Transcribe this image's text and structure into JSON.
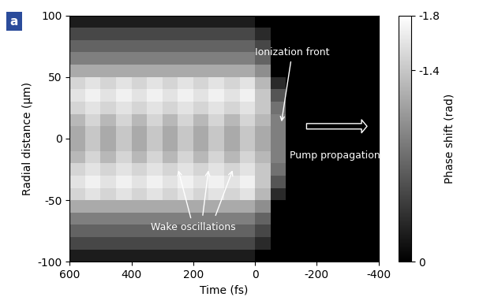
{
  "chart_data": {
    "type": "heatmap",
    "panel_label": "a",
    "x_label": "Time (fs)",
    "y_label": "Radial distance (µm)",
    "xlim": [
      600,
      -400
    ],
    "xticks": [
      600,
      400,
      200,
      0,
      -200,
      -400
    ],
    "ylim": [
      -100,
      100
    ],
    "yticks": [
      -100,
      -50,
      0,
      50,
      100
    ],
    "colorbar_label": "Phase shift (rad)",
    "colorbar_range": [
      -1.8,
      0
    ],
    "colorbar_ticks": [
      -1.8,
      -1.4,
      0
    ],
    "annotations": [
      "Ionization front",
      "Pump propagation",
      "Wake oscillations"
    ],
    "x": [
      575,
      525,
      475,
      425,
      375,
      325,
      275,
      225,
      175,
      125,
      75,
      25,
      -25,
      -75,
      -125,
      -175,
      -225,
      -275,
      -325,
      -375
    ],
    "y": [
      -95,
      -85,
      -75,
      -65,
      -55,
      -45,
      -35,
      -25,
      -15,
      -5,
      5,
      15,
      25,
      35,
      45,
      55,
      65,
      75,
      85,
      95
    ],
    "cells": [
      [
        -0.2,
        -0.2,
        -0.2,
        -0.2,
        -0.2,
        -0.2,
        -0.2,
        -0.2,
        -0.2,
        -0.2,
        -0.2,
        -0.2,
        0,
        0,
        0,
        0,
        0,
        0,
        0,
        0
      ],
      [
        -0.5,
        -0.5,
        -0.5,
        -0.5,
        -0.5,
        -0.5,
        -0.5,
        -0.5,
        -0.5,
        -0.5,
        -0.5,
        -0.5,
        -0.3,
        0,
        0,
        0,
        0,
        0,
        0,
        0
      ],
      [
        -0.7,
        -0.7,
        -0.7,
        -0.7,
        -0.7,
        -0.7,
        -0.7,
        -0.7,
        -0.7,
        -0.7,
        -0.7,
        -0.7,
        -0.5,
        0,
        0,
        0,
        0,
        0,
        0,
        0
      ],
      [
        -0.9,
        -0.9,
        -0.9,
        -0.9,
        -0.9,
        -0.9,
        -0.9,
        -0.9,
        -0.9,
        -0.9,
        -0.9,
        -0.9,
        -0.7,
        0,
        0,
        0,
        0,
        0,
        0,
        0
      ],
      [
        -1.2,
        -1.2,
        -1.2,
        -1.2,
        -1.2,
        -1.2,
        -1.2,
        -1.2,
        -1.2,
        -1.2,
        -1.2,
        -1.2,
        -1.0,
        0,
        0,
        0,
        0,
        0,
        0,
        0
      ],
      [
        -1.5,
        -1.6,
        -1.5,
        -1.6,
        -1.5,
        -1.6,
        -1.5,
        -1.6,
        -1.5,
        -1.6,
        -1.5,
        -1.6,
        -1.3,
        -0.3,
        0,
        0,
        0,
        0,
        0,
        0
      ],
      [
        -1.6,
        -1.7,
        -1.6,
        -1.7,
        -1.6,
        -1.7,
        -1.6,
        -1.7,
        -1.6,
        -1.7,
        -1.6,
        -1.7,
        -1.4,
        -0.6,
        0,
        0,
        0,
        0,
        0,
        0
      ],
      [
        -1.5,
        -1.6,
        -1.5,
        -1.6,
        -1.5,
        -1.6,
        -1.5,
        -1.6,
        -1.5,
        -1.6,
        -1.5,
        -1.6,
        -1.4,
        -0.8,
        0,
        0,
        0,
        0,
        0,
        0
      ],
      [
        -1.3,
        -1.5,
        -1.3,
        -1.5,
        -1.3,
        -1.5,
        -1.3,
        -1.5,
        -1.3,
        -1.5,
        -1.3,
        -1.5,
        -1.3,
        -0.9,
        0,
        0,
        0,
        0,
        0,
        0
      ],
      [
        -1.2,
        -1.4,
        -1.2,
        -1.4,
        -1.2,
        -1.4,
        -1.2,
        -1.4,
        -1.2,
        -1.4,
        -1.2,
        -1.4,
        -1.2,
        -0.9,
        0,
        0,
        0,
        0,
        0,
        0
      ],
      [
        -1.2,
        -1.4,
        -1.2,
        -1.4,
        -1.2,
        -1.4,
        -1.2,
        -1.4,
        -1.2,
        -1.4,
        -1.2,
        -1.4,
        -1.2,
        -0.9,
        0,
        0,
        0,
        0,
        0,
        0
      ],
      [
        -1.3,
        -1.5,
        -1.3,
        -1.5,
        -1.3,
        -1.5,
        -1.3,
        -1.5,
        -1.3,
        -1.5,
        -1.3,
        -1.5,
        -1.3,
        -0.9,
        0,
        0,
        0,
        0,
        0,
        0
      ],
      [
        -1.5,
        -1.6,
        -1.5,
        -1.6,
        -1.5,
        -1.6,
        -1.5,
        -1.6,
        -1.5,
        -1.6,
        -1.5,
        -1.6,
        -1.4,
        -0.8,
        0,
        0,
        0,
        0,
        0,
        0
      ],
      [
        -1.6,
        -1.7,
        -1.6,
        -1.7,
        -1.6,
        -1.7,
        -1.6,
        -1.7,
        -1.6,
        -1.7,
        -1.6,
        -1.7,
        -1.4,
        -0.6,
        0,
        0,
        0,
        0,
        0,
        0
      ],
      [
        -1.5,
        -1.6,
        -1.5,
        -1.6,
        -1.5,
        -1.6,
        -1.5,
        -1.6,
        -1.5,
        -1.6,
        -1.5,
        -1.6,
        -1.3,
        -0.3,
        0,
        0,
        0,
        0,
        0,
        0
      ],
      [
        -1.2,
        -1.2,
        -1.2,
        -1.2,
        -1.2,
        -1.2,
        -1.2,
        -1.2,
        -1.2,
        -1.2,
        -1.2,
        -1.2,
        -1.0,
        0,
        0,
        0,
        0,
        0,
        0,
        0
      ],
      [
        -0.9,
        -0.9,
        -0.9,
        -0.9,
        -0.9,
        -0.9,
        -0.9,
        -0.9,
        -0.9,
        -0.9,
        -0.9,
        -0.9,
        -0.7,
        0,
        0,
        0,
        0,
        0,
        0,
        0
      ],
      [
        -0.7,
        -0.7,
        -0.7,
        -0.7,
        -0.7,
        -0.7,
        -0.7,
        -0.7,
        -0.7,
        -0.7,
        -0.7,
        -0.7,
        -0.5,
        0,
        0,
        0,
        0,
        0,
        0,
        0
      ],
      [
        -0.5,
        -0.5,
        -0.5,
        -0.5,
        -0.5,
        -0.5,
        -0.5,
        -0.5,
        -0.5,
        -0.5,
        -0.5,
        -0.5,
        -0.3,
        0,
        0,
        0,
        0,
        0,
        0,
        0
      ],
      [
        -0.2,
        -0.2,
        -0.2,
        -0.2,
        -0.2,
        -0.2,
        -0.2,
        -0.2,
        -0.2,
        -0.2,
        -0.2,
        -0.2,
        0,
        0,
        0,
        0,
        0,
        0,
        0,
        0
      ]
    ]
  }
}
